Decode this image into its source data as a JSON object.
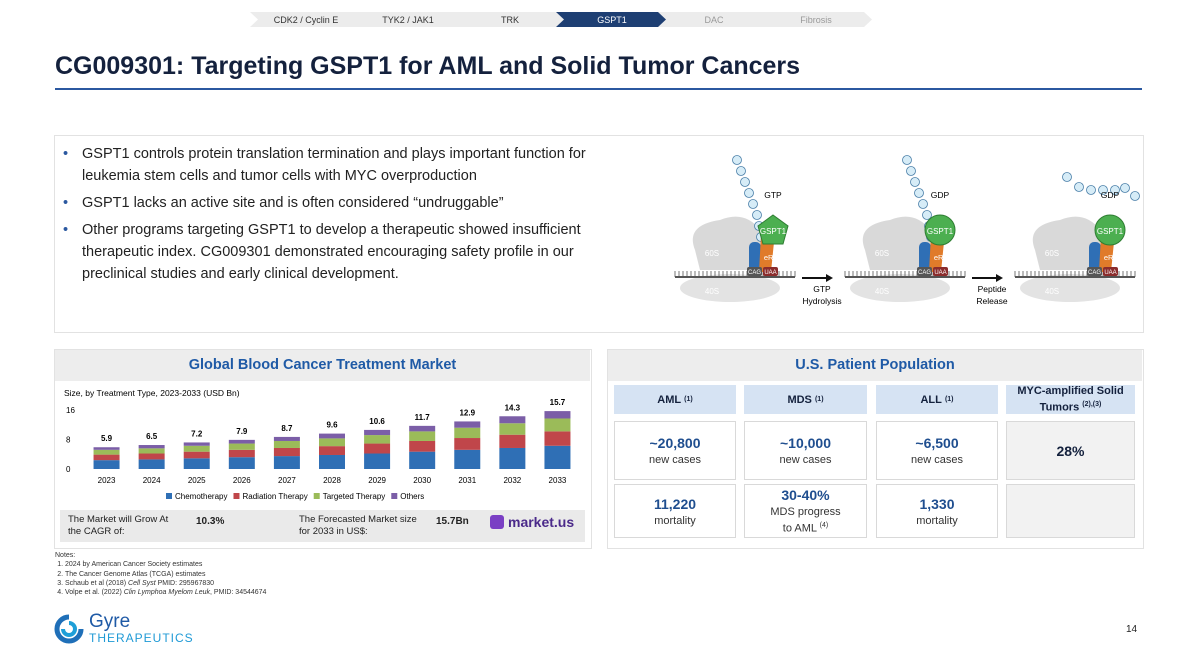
{
  "nav": [
    "CDK2 / Cyclin E",
    "TYK2 / JAK1",
    "TRK",
    "GSPT1",
    "DAC",
    "Fibrosis"
  ],
  "nav_active_index": 3,
  "title": "CG009301: Targeting GSPT1 for AML and Solid Tumor Cancers",
  "bullets": [
    "GSPT1 controls protein translation termination and plays important function for leukemia stem cells and tumor cells with MYC overproduction",
    "GSPT1 lacks an active site and is often considered “undruggable”",
    "Other programs targeting GSPT1 to develop a therapeutic showed insufficient therapeutic index. CG009301 demonstrated encouraging safety profile in our preclinical studies and early clinical development."
  ],
  "diagram": {
    "panels": [
      {
        "state": "GTP",
        "gspt1": "GSPT1",
        "large": "60S",
        "small": "40S",
        "erf1": "eRF1",
        "codon1": "CAG",
        "codon2": "UAA"
      },
      {
        "state": "GDP",
        "gspt1": "GSPT1",
        "large": "60S",
        "small": "40S",
        "erf1": "eRF1",
        "codon1": "CAG",
        "codon2": "UAA"
      },
      {
        "state": "GDP",
        "gspt1": "GSPT1",
        "large": "60S",
        "small": "40S",
        "erf1": "eRF1",
        "codon1": "CAG",
        "codon2": "UAA"
      }
    ],
    "steps": [
      [
        "GTP",
        "Hydrolysis"
      ],
      [
        "Peptide",
        "Release"
      ]
    ]
  },
  "market": {
    "heading": "Global Blood Cancer Treatment Market",
    "cagr_label": "The Market will Grow At the CAGR of:",
    "cagr": "10.3%",
    "forecast_label": "The Forecasted Market size for 2033 in US$:",
    "forecast": "15.7Bn",
    "source": "market.us"
  },
  "chart_data": {
    "type": "stacked-bar",
    "subtitle": "Size, by Treatment Type, 2023-2033 (USD Bn)",
    "categories": [
      "2023",
      "2024",
      "2025",
      "2026",
      "2027",
      "2028",
      "2029",
      "2030",
      "2031",
      "2032",
      "2033"
    ],
    "series": [
      {
        "name": "Chemotherapy",
        "color": "#2f6fb5",
        "values": [
          2.4,
          2.6,
          2.9,
          3.2,
          3.5,
          3.8,
          4.2,
          4.7,
          5.2,
          5.7,
          6.3
        ]
      },
      {
        "name": "Radiation Therapy",
        "color": "#c0464a",
        "values": [
          1.5,
          1.6,
          1.8,
          2.0,
          2.2,
          2.4,
          2.7,
          2.9,
          3.2,
          3.6,
          3.9
        ]
      },
      {
        "name": "Targeted Therapy",
        "color": "#9bbb59",
        "values": [
          1.3,
          1.4,
          1.6,
          1.7,
          1.9,
          2.1,
          2.3,
          2.6,
          2.8,
          3.1,
          3.5
        ]
      },
      {
        "name": "Others",
        "color": "#7b5ea7",
        "values": [
          0.7,
          0.9,
          0.9,
          1.0,
          1.1,
          1.3,
          1.4,
          1.5,
          1.7,
          1.9,
          2.0
        ]
      }
    ],
    "totals": [
      5.9,
      6.5,
      7.2,
      7.9,
      8.7,
      9.6,
      10.6,
      11.7,
      12.9,
      14.3,
      15.7
    ],
    "ylim": [
      0,
      16
    ],
    "yticks": [
      0,
      8,
      16
    ],
    "grid": false,
    "legend": "bottom"
  },
  "population": {
    "heading": "U.S. Patient Population",
    "headers": [
      {
        "text": "AML",
        "note": "(1)"
      },
      {
        "text": "MDS",
        "note": "(1)"
      },
      {
        "text": "ALL",
        "note": "(1)"
      },
      {
        "text": "MYC-amplified Solid Tumors",
        "note": "(2),(3)"
      }
    ],
    "rows": [
      [
        {
          "value": "~20,800",
          "sub": "new cases"
        },
        {
          "value": "~10,000",
          "sub": "new cases"
        },
        {
          "value": "~6,500",
          "sub": "new cases"
        },
        {
          "value": "28%"
        }
      ],
      [
        {
          "value": "11,220",
          "sub": "mortality"
        },
        {
          "value": "30-40%",
          "sub": "MDS progress to AML",
          "note": "(4)"
        },
        {
          "value": "1,330",
          "sub": "mortality"
        }
      ]
    ]
  },
  "notes": {
    "heading": "Notes:",
    "items": [
      {
        "pre": "2024 by American Cancer Society estimates"
      },
      {
        "pre": "The Cancer Genome Atlas (TCGA) estimates"
      },
      {
        "pre": "Schaub et al (2018) ",
        "italic": "Cell Syst",
        "post": " PMID: 295967830"
      },
      {
        "pre": "Volpe et al. (2022) ",
        "italic": "Clin Lymphoa Myelom Leuk",
        "post": ", PMID: 34544674"
      }
    ]
  },
  "logo": {
    "name": "Gyre",
    "sub": "THERAPEUTICS"
  },
  "page_number": "14"
}
